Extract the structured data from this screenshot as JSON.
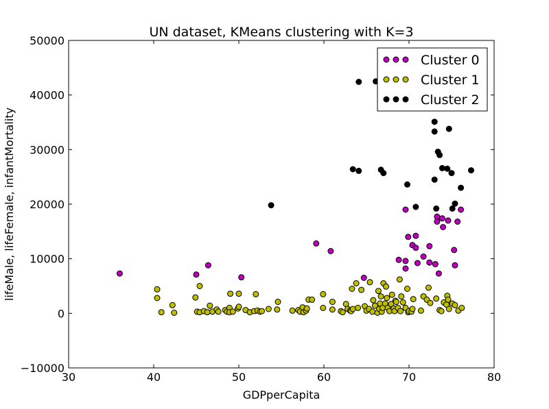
{
  "chart_data": {
    "type": "scatter",
    "title": "UN dataset, KMeans clustering with K=3",
    "xlabel": "GDPperCapita",
    "ylabel": "lifeMale, lifeFemale, infantMortality",
    "xlim": [
      30,
      80
    ],
    "ylim": [
      -10000,
      50000
    ],
    "x_ticks": [
      "30",
      "40",
      "50",
      "60",
      "70",
      "80"
    ],
    "y_ticks": [
      "−10000",
      "0",
      "10000",
      "20000",
      "30000",
      "40000",
      "50000"
    ],
    "x_tick_values": [
      30,
      40,
      50,
      60,
      70,
      80
    ],
    "y_tick_values": [
      -10000,
      0,
      10000,
      20000,
      30000,
      40000,
      50000
    ],
    "grid": false,
    "legend_position": "top-right",
    "series": [
      {
        "name": "Cluster 0",
        "color": "#bf00bf",
        "points": [
          [
            36.0,
            7300
          ],
          [
            45.0,
            7100
          ],
          [
            46.4,
            8800
          ],
          [
            50.3,
            6600
          ],
          [
            59.1,
            12800
          ],
          [
            60.8,
            11400
          ],
          [
            64.7,
            6500
          ],
          [
            68.8,
            9800
          ],
          [
            69.6,
            8200
          ],
          [
            69.6,
            9600
          ],
          [
            69.6,
            19000
          ],
          [
            69.9,
            14000
          ],
          [
            70.4,
            12500
          ],
          [
            70.8,
            12000
          ],
          [
            70.8,
            14200
          ],
          [
            71.0,
            9200
          ],
          [
            71.7,
            10400
          ],
          [
            72.4,
            9300
          ],
          [
            72.4,
            12300
          ],
          [
            73.1,
            9000
          ],
          [
            73.3,
            17700
          ],
          [
            73.3,
            16800
          ],
          [
            73.5,
            7300
          ],
          [
            73.9,
            17400
          ],
          [
            74.0,
            15800
          ],
          [
            74.6,
            17000
          ],
          [
            75.3,
            11600
          ],
          [
            75.4,
            8800
          ],
          [
            75.7,
            16800
          ],
          [
            76.1,
            19000
          ]
        ]
      },
      {
        "name": "Cluster 1",
        "color": "#bfbf00",
        "points": [
          [
            40.4,
            4400
          ],
          [
            40.4,
            2800
          ],
          [
            40.9,
            200
          ],
          [
            42.2,
            1500
          ],
          [
            42.4,
            100
          ],
          [
            44.9,
            2900
          ],
          [
            45.1,
            300
          ],
          [
            45.4,
            5000
          ],
          [
            45.4,
            200
          ],
          [
            45.9,
            400
          ],
          [
            46.3,
            200
          ],
          [
            46.6,
            1400
          ],
          [
            46.9,
            300
          ],
          [
            47.4,
            700
          ],
          [
            47.6,
            300
          ],
          [
            48.4,
            600
          ],
          [
            48.6,
            300
          ],
          [
            48.9,
            1000
          ],
          [
            48.9,
            200
          ],
          [
            49.0,
            3600
          ],
          [
            49.3,
            300
          ],
          [
            49.9,
            900
          ],
          [
            50.0,
            1200
          ],
          [
            50.0,
            3600
          ],
          [
            50.8,
            600
          ],
          [
            51.3,
            200
          ],
          [
            51.8,
            400
          ],
          [
            52.0,
            3500
          ],
          [
            52.2,
            500
          ],
          [
            52.5,
            300
          ],
          [
            52.7,
            400
          ],
          [
            53.5,
            800
          ],
          [
            54.5,
            700
          ],
          [
            54.6,
            2100
          ],
          [
            56.3,
            500
          ],
          [
            57.0,
            600
          ],
          [
            57.2,
            300
          ],
          [
            57.5,
            1100
          ],
          [
            57.6,
            200
          ],
          [
            57.9,
            500
          ],
          [
            58.0,
            900
          ],
          [
            58.2,
            2500
          ],
          [
            58.6,
            2500
          ],
          [
            59.9,
            1000
          ],
          [
            59.9,
            3500
          ],
          [
            61.0,
            2100
          ],
          [
            61.0,
            700
          ],
          [
            62.0,
            400
          ],
          [
            62.2,
            200
          ],
          [
            62.6,
            1700
          ],
          [
            62.8,
            800
          ],
          [
            63.1,
            500
          ],
          [
            63.2,
            400
          ],
          [
            63.3,
            4500
          ],
          [
            63.4,
            800
          ],
          [
            63.8,
            5500
          ],
          [
            64.0,
            1000
          ],
          [
            64.4,
            4300
          ],
          [
            64.8,
            1300
          ],
          [
            65.0,
            500
          ],
          [
            65.3,
            800
          ],
          [
            65.4,
            5700
          ],
          [
            65.7,
            300
          ],
          [
            65.8,
            2400
          ],
          [
            66.0,
            1400
          ],
          [
            66.3,
            100
          ],
          [
            66.4,
            4100
          ],
          [
            66.5,
            800
          ],
          [
            66.6,
            1800
          ],
          [
            66.7,
            3100
          ],
          [
            66.8,
            300
          ],
          [
            66.9,
            1000
          ],
          [
            67.0,
            5500
          ],
          [
            67.2,
            1800
          ],
          [
            67.3,
            4900
          ],
          [
            67.4,
            2800
          ],
          [
            67.5,
            1000
          ],
          [
            67.7,
            400
          ],
          [
            67.9,
            1700
          ],
          [
            68.0,
            3400
          ],
          [
            68.2,
            900
          ],
          [
            68.3,
            400
          ],
          [
            68.4,
            2300
          ],
          [
            68.5,
            2100
          ],
          [
            68.7,
            1000
          ],
          [
            68.9,
            6200
          ],
          [
            69.0,
            400
          ],
          [
            69.1,
            3100
          ],
          [
            69.3,
            2000
          ],
          [
            69.6,
            1000
          ],
          [
            69.8,
            4500
          ],
          [
            69.9,
            200
          ],
          [
            70.0,
            400
          ],
          [
            70.3,
            300
          ],
          [
            70.4,
            800
          ],
          [
            70.5,
            2600
          ],
          [
            71.4,
            500
          ],
          [
            71.7,
            3100
          ],
          [
            72.1,
            2500
          ],
          [
            72.3,
            4700
          ],
          [
            72.5,
            1900
          ],
          [
            73.2,
            2700
          ],
          [
            73.6,
            600
          ],
          [
            73.8,
            400
          ],
          [
            74.1,
            2000
          ],
          [
            74.4,
            1600
          ],
          [
            74.5,
            3200
          ],
          [
            74.6,
            2500
          ],
          [
            74.7,
            800
          ],
          [
            75.1,
            1800
          ],
          [
            75.4,
            1500
          ],
          [
            75.8,
            500
          ],
          [
            76.2,
            1000
          ]
        ]
      },
      {
        "name": "Cluster 2",
        "color": "#000000",
        "points": [
          [
            53.8,
            19800
          ],
          [
            63.4,
            26400
          ],
          [
            64.1,
            42400
          ],
          [
            64.1,
            26100
          ],
          [
            66.1,
            42500
          ],
          [
            66.7,
            26300
          ],
          [
            67.0,
            25700
          ],
          [
            69.8,
            23600
          ],
          [
            70.8,
            19500
          ],
          [
            73.0,
            35100
          ],
          [
            73.0,
            33300
          ],
          [
            73.0,
            24500
          ],
          [
            73.2,
            19200
          ],
          [
            73.4,
            29600
          ],
          [
            73.6,
            29000
          ],
          [
            73.9,
            26600
          ],
          [
            74.5,
            26500
          ],
          [
            74.7,
            33800
          ],
          [
            75.0,
            25700
          ],
          [
            75.1,
            19200
          ],
          [
            75.4,
            20100
          ],
          [
            76.1,
            23000
          ],
          [
            77.3,
            26200
          ]
        ]
      }
    ]
  }
}
